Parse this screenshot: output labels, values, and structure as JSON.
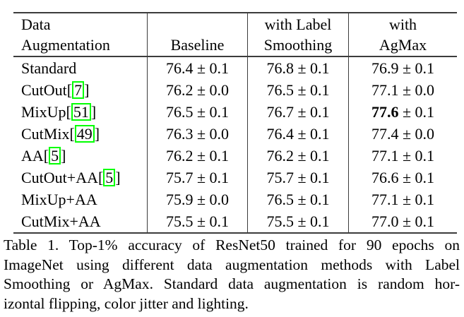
{
  "table": {
    "columns": [
      {
        "line1": "Data",
        "line2": "Augmentation"
      },
      {
        "line1": "",
        "line2": "Baseline"
      },
      {
        "line1": "with Label",
        "line2": "Smoothing"
      },
      {
        "line1": "with",
        "line2": "AgMax"
      }
    ],
    "citation_box_color": "#00ff00",
    "rows": [
      {
        "method_pre": "Standard",
        "cite": "",
        "method_post": "",
        "baseline": "76.4 ± 0.1",
        "label_smoothing": "76.8 ± 0.1",
        "agmax_score": "76.9",
        "agmax_rest": " ± 0.1",
        "agmax_bold": false
      },
      {
        "method_pre": "CutOut[",
        "cite": "7",
        "method_post": "]",
        "baseline": "76.2 ± 0.0",
        "label_smoothing": "76.5 ± 0.1",
        "agmax_score": "77.1",
        "agmax_rest": " ± 0.0",
        "agmax_bold": false
      },
      {
        "method_pre": "MixUp[",
        "cite": "51",
        "method_post": "]",
        "baseline": "76.5 ± 0.1",
        "label_smoothing": "76.7 ± 0.1",
        "agmax_score": "77.6",
        "agmax_rest": " ± 0.1",
        "agmax_bold": true
      },
      {
        "method_pre": "CutMix[",
        "cite": "49",
        "method_post": "]",
        "baseline": "76.3 ± 0.0",
        "label_smoothing": "76.4 ± 0.1",
        "agmax_score": "77.4",
        "agmax_rest": " ± 0.0",
        "agmax_bold": false
      },
      {
        "method_pre": "AA[",
        "cite": "5",
        "method_post": "]",
        "baseline": "76.2 ± 0.1",
        "label_smoothing": "76.2 ± 0.1",
        "agmax_score": "77.1",
        "agmax_rest": " ± 0.1",
        "agmax_bold": false
      },
      {
        "method_pre": "CutOut+AA[",
        "cite": "5",
        "method_post": "]",
        "baseline": "75.7 ± 0.1",
        "label_smoothing": "75.7 ± 0.1",
        "agmax_score": "76.6",
        "agmax_rest": " ± 0.1",
        "agmax_bold": false
      },
      {
        "method_pre": "MixUp+AA",
        "cite": "",
        "method_post": "",
        "baseline": "75.9 ± 0.0",
        "label_smoothing": "76.5 ± 0.1",
        "agmax_score": "77.1",
        "agmax_rest": " ± 0.1",
        "agmax_bold": false
      },
      {
        "method_pre": "CutMix+AA",
        "cite": "",
        "method_post": "",
        "baseline": "75.5 ± 0.1",
        "label_smoothing": "75.5 ± 0.1",
        "agmax_score": "77.0",
        "agmax_rest": " ± 0.1",
        "agmax_bold": false
      }
    ]
  },
  "caption": {
    "lines": [
      "Table 1. Top-1% accuracy of ResNet50 trained for 90 epochs on",
      "ImageNet using different data augmentation methods with Label",
      "Smoothing or AgMax. Standard data augmentation is random hor-",
      "izontal flipping, color jitter and lighting."
    ]
  }
}
